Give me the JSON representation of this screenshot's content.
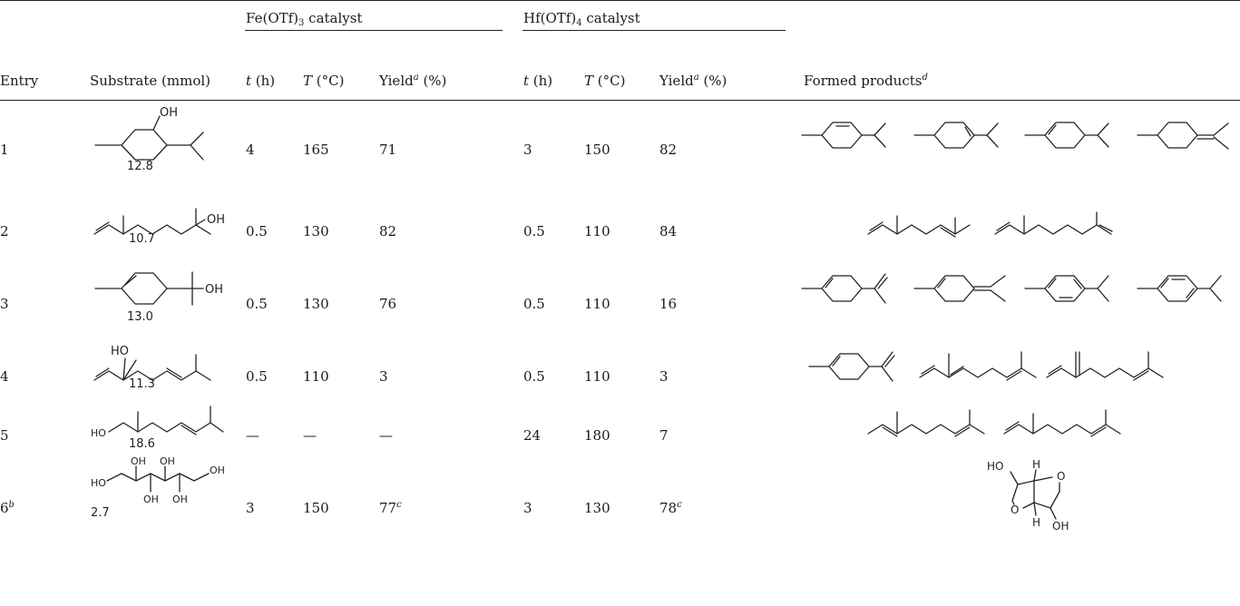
{
  "table": {
    "group_headers": {
      "fe": "Fe(OTf)",
      "fe_sub": "3",
      "hf": "Hf(OTf)",
      "hf_sub": "4",
      "catalyst": " catalyst"
    },
    "columns": {
      "entry": "Entry",
      "substrate": "Substrate (mmol)",
      "t": "t",
      "t_unit": " (h)",
      "T": "T",
      "T_unit": " (°C)",
      "yield": "Yield",
      "yield_sup": "a",
      "yield_unit": " (%)",
      "products": "Formed products",
      "products_sup": "d"
    },
    "rows": [
      {
        "entry": "1",
        "entry_sup": "",
        "mmol": "12.8",
        "fe_t": "4",
        "fe_T": "165",
        "fe_yield": "71",
        "fe_yield_sup": "",
        "hf_t": "3",
        "hf_T": "150",
        "hf_yield": "82",
        "hf_yield_sup": ""
      },
      {
        "entry": "2",
        "entry_sup": "",
        "mmol": "10.7",
        "fe_t": "0.5",
        "fe_T": "130",
        "fe_yield": "82",
        "fe_yield_sup": "",
        "hf_t": "0.5",
        "hf_T": "110",
        "hf_yield": "84",
        "hf_yield_sup": ""
      },
      {
        "entry": "3",
        "entry_sup": "",
        "mmol": "13.0",
        "fe_t": "0.5",
        "fe_T": "130",
        "fe_yield": "76",
        "fe_yield_sup": "",
        "hf_t": "0.5",
        "hf_T": "110",
        "hf_yield": "16",
        "hf_yield_sup": ""
      },
      {
        "entry": "4",
        "entry_sup": "",
        "mmol": "11.3",
        "fe_t": "0.5",
        "fe_T": "110",
        "fe_yield": "3",
        "fe_yield_sup": "",
        "hf_t": "0.5",
        "hf_T": "110",
        "hf_yield": "3",
        "hf_yield_sup": ""
      },
      {
        "entry": "5",
        "entry_sup": "",
        "mmol": "18.6",
        "fe_t": "—",
        "fe_T": "—",
        "fe_yield": "—",
        "fe_yield_sup": "",
        "hf_t": "24",
        "hf_T": "180",
        "hf_yield": "7",
        "hf_yield_sup": ""
      },
      {
        "entry": "6",
        "entry_sup": "b",
        "mmol": "2.7",
        "fe_t": "3",
        "fe_T": "150",
        "fe_yield": "77",
        "fe_yield_sup": "c",
        "hf_t": "3",
        "hf_T": "130",
        "hf_yield": "78",
        "hf_yield_sup": "c"
      }
    ],
    "atom_labels": {
      "oh": "OH",
      "ho": "HO",
      "h": "H",
      "o": "O"
    }
  }
}
